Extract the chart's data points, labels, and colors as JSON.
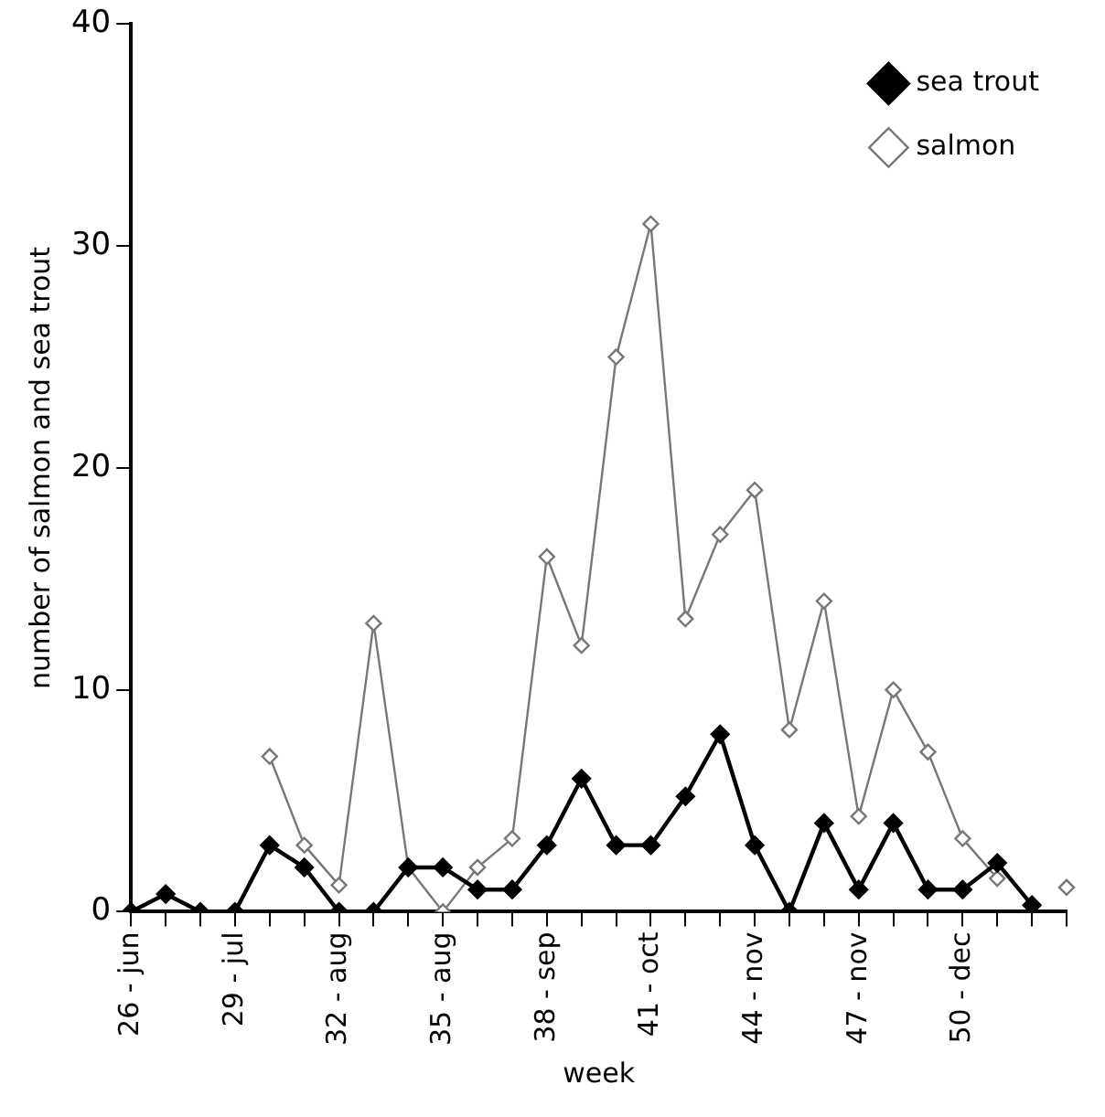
{
  "chart_data": {
    "type": "line",
    "xlabel": "week",
    "ylabel": "number of salmon and sea trout",
    "categories": [
      "26 - jun",
      null,
      null,
      "29 - jul",
      null,
      null,
      "32 - aug",
      null,
      null,
      "35 - aug",
      null,
      null,
      "38 - sep",
      null,
      null,
      "41 - oct",
      null,
      null,
      "44 - nov",
      null,
      null,
      "47 - nov",
      null,
      null,
      "50 - dec",
      null,
      null,
      null
    ],
    "series": [
      {
        "name": "salmon",
        "color": "#777777",
        "values": [
          null,
          null,
          null,
          null,
          7,
          3,
          1.2,
          13,
          2,
          0,
          2,
          3.3,
          16,
          12,
          25,
          31,
          13.2,
          17,
          19,
          8.2,
          14,
          4.3,
          10,
          7.2,
          3.3,
          1.5,
          null,
          1.1
        ]
      },
      {
        "name": "sea trout",
        "color": "#000000",
        "values": [
          0,
          0.8,
          0,
          0,
          3,
          2,
          0,
          0,
          2,
          2,
          1,
          1,
          3,
          6,
          3,
          3,
          5.2,
          8,
          3,
          0,
          4,
          1,
          4,
          1,
          1,
          2.2,
          0.3,
          null
        ]
      }
    ],
    "ylim": [
      0,
      40
    ],
    "yticks": [
      0,
      10,
      20,
      30,
      40
    ],
    "grid": false,
    "legend": "top right",
    "marker": "diamond"
  }
}
